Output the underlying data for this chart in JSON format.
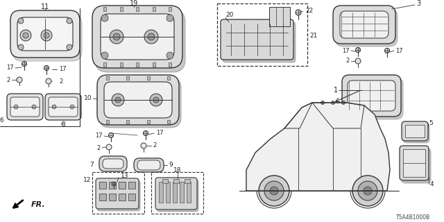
{
  "background_color": "#ffffff",
  "diagram_code": "T5A4B1000B",
  "fig_width": 6.4,
  "fig_height": 3.2,
  "dpi": 100,
  "line_color": "#333333",
  "label_color": "#222222"
}
